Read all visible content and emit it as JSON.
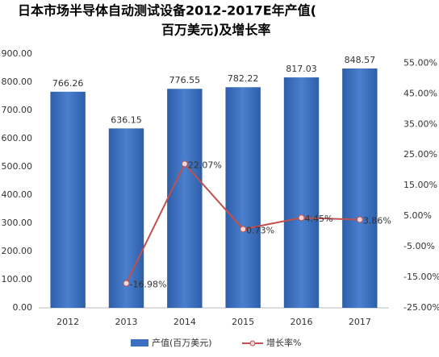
{
  "chart_data": {
    "type": "bar",
    "title": "日本市场半导体自动测试设备2012-2017E年产值(百万美元)及增长率",
    "categories": [
      "2012",
      "2013",
      "2014",
      "2015",
      "2016",
      "2017"
    ],
    "series": [
      {
        "name": "产值(百万美元)",
        "type": "bar",
        "color": "#3b6fbf",
        "values": [
          766.26,
          636.15,
          776.55,
          782.22,
          817.03,
          848.57
        ]
      },
      {
        "name": "增长率%",
        "type": "line",
        "axis": "y2",
        "color": "#c0504d",
        "values": [
          null,
          -16.98,
          22.07,
          0.73,
          4.45,
          3.86
        ],
        "value_labels": [
          null,
          "-16.98%",
          "22.07%",
          "0.73%",
          "4.45%",
          "3.86%"
        ]
      }
    ],
    "ylim": [
      0,
      900
    ],
    "yticks": [
      {
        "value": 0,
        "label": "0.00"
      },
      {
        "value": 100,
        "label": "100.00"
      },
      {
        "value": 200,
        "label": "200.00"
      },
      {
        "value": 300,
        "label": "300.00"
      },
      {
        "value": 400,
        "label": "400.00"
      },
      {
        "value": 500,
        "label": "500.00"
      },
      {
        "value": 600,
        "label": "600.00"
      },
      {
        "value": 700,
        "label": "700.00"
      },
      {
        "value": 800,
        "label": "800.00"
      },
      {
        "value": 900,
        "label": "900.00"
      }
    ],
    "y2lim": [
      -25,
      58
    ],
    "y2ticks": [
      {
        "value": -25,
        "label": "-25.00%"
      },
      {
        "value": -15,
        "label": "-15.00%"
      },
      {
        "value": -5,
        "label": "-5.00%"
      },
      {
        "value": 5,
        "label": "5.00%"
      },
      {
        "value": 15,
        "label": "15.00%"
      },
      {
        "value": 25,
        "label": "25.00%"
      },
      {
        "value": 35,
        "label": "35.00%"
      },
      {
        "value": 45,
        "label": "45.00%"
      },
      {
        "value": 55,
        "label": "55.00%"
      }
    ],
    "legend": "bottom"
  }
}
